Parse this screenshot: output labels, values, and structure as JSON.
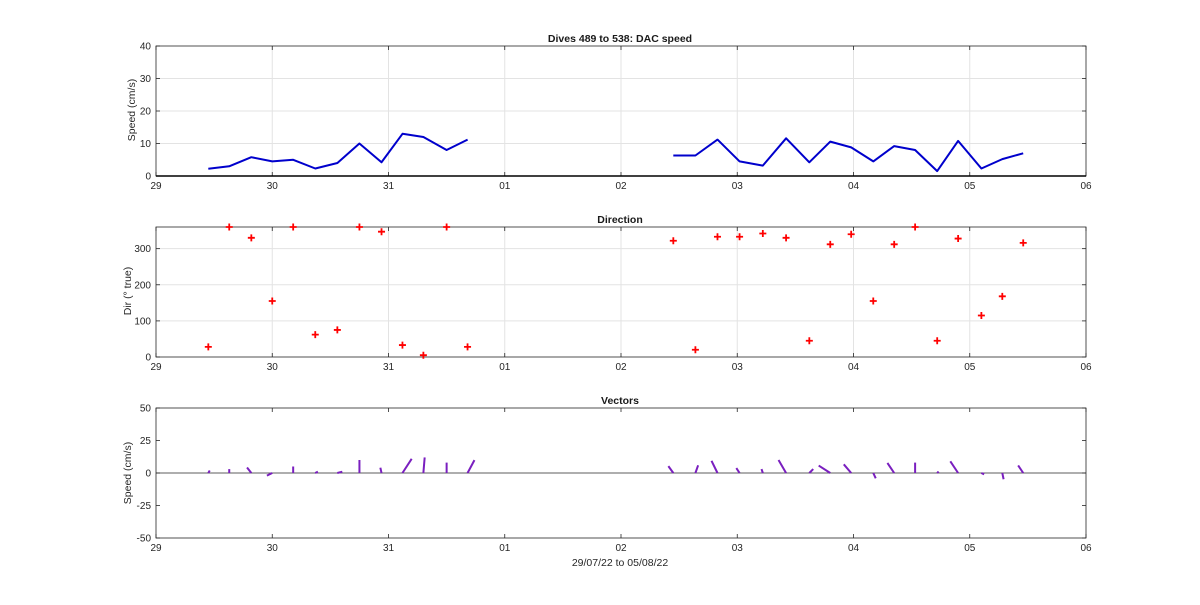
{
  "figure": {
    "xlabel": "29/07/22 to 05/08/22",
    "x_tick_labels": [
      "29",
      "30",
      "31",
      "01",
      "02",
      "03",
      "04",
      "05",
      "06"
    ]
  },
  "chart_data": [
    {
      "type": "line",
      "title": "Dives 489 to 538: DAC speed",
      "ylabel": "Speed (cm/s)",
      "xlabel": "",
      "xlim": [
        0,
        8
      ],
      "ylim": [
        0,
        40
      ],
      "y_ticks": [
        0,
        10,
        20,
        30,
        40
      ],
      "grid": true,
      "color": "#0000cc",
      "series": [
        {
          "segments": [
            [
              [
                0.45,
                2.2
              ],
              [
                0.63,
                3.0
              ],
              [
                0.82,
                5.8
              ],
              [
                1.0,
                4.5
              ],
              [
                1.18,
                5.0
              ],
              [
                1.37,
                2.3
              ],
              [
                1.56,
                4.0
              ],
              [
                1.75,
                10.0
              ],
              [
                1.94,
                4.2
              ],
              [
                2.12,
                13.0
              ],
              [
                2.3,
                12.0
              ],
              [
                2.5,
                8.0
              ],
              [
                2.68,
                11.2
              ]
            ],
            [
              [
                4.45,
                6.3
              ],
              [
                4.64,
                6.3
              ],
              [
                4.83,
                11.2
              ],
              [
                5.02,
                4.5
              ],
              [
                5.22,
                3.2
              ],
              [
                5.42,
                11.6
              ],
              [
                5.62,
                4.2
              ],
              [
                5.8,
                10.6
              ],
              [
                5.98,
                8.8
              ],
              [
                6.17,
                4.5
              ],
              [
                6.35,
                9.2
              ],
              [
                6.53,
                8.0
              ],
              [
                6.72,
                1.5
              ],
              [
                6.9,
                10.8
              ],
              [
                7.1,
                2.3
              ],
              [
                7.28,
                5.2
              ],
              [
                7.46,
                7.0
              ]
            ]
          ]
        }
      ]
    },
    {
      "type": "scatter",
      "title": "Direction",
      "ylabel": "Dir (° true)",
      "xlabel": "",
      "xlim": [
        0,
        8
      ],
      "ylim": [
        0,
        360
      ],
      "y_ticks": [
        0,
        100,
        200,
        300
      ],
      "grid": true,
      "color": "#ff0000",
      "marker": "+",
      "points": [
        [
          0.45,
          28
        ],
        [
          0.63,
          360
        ],
        [
          0.82,
          330
        ],
        [
          1.0,
          155
        ],
        [
          1.18,
          360
        ],
        [
          1.37,
          62
        ],
        [
          1.56,
          75
        ],
        [
          1.75,
          360
        ],
        [
          1.94,
          347
        ],
        [
          2.12,
          33
        ],
        [
          2.3,
          5
        ],
        [
          2.5,
          360
        ],
        [
          2.68,
          28
        ],
        [
          4.45,
          322
        ],
        [
          4.64,
          20
        ],
        [
          4.83,
          333
        ],
        [
          5.02,
          333
        ],
        [
          5.22,
          342
        ],
        [
          5.42,
          330
        ],
        [
          5.62,
          45
        ],
        [
          5.8,
          312
        ],
        [
          5.98,
          340
        ],
        [
          6.17,
          155
        ],
        [
          6.35,
          312
        ],
        [
          6.53,
          360
        ],
        [
          6.72,
          45
        ],
        [
          6.9,
          328
        ],
        [
          7.1,
          115
        ],
        [
          7.28,
          168
        ],
        [
          7.46,
          316
        ]
      ]
    },
    {
      "type": "line",
      "title": "Vectors",
      "ylabel": "Speed (cm/s)",
      "xlabel": "29/07/22 to 05/08/22",
      "xlim": [
        0,
        8
      ],
      "ylim": [
        -50,
        50
      ],
      "y_ticks": [
        -50,
        -25,
        0,
        25,
        50
      ],
      "grid": false,
      "zero_line": true,
      "color": "#7a1fbf",
      "vectors": [
        [
          0.45,
          1.1,
          1.9
        ],
        [
          0.63,
          0.0,
          3.0
        ],
        [
          0.82,
          -3.3,
          4.2
        ],
        [
          1.0,
          -4.1,
          -2.0
        ],
        [
          1.18,
          0.0,
          5.0
        ],
        [
          1.37,
          2.0,
          1.0
        ],
        [
          1.56,
          3.8,
          1.0
        ],
        [
          1.75,
          0.0,
          10.0
        ],
        [
          1.94,
          -0.9,
          4.1
        ],
        [
          2.12,
          7.1,
          10.9
        ],
        [
          2.3,
          1.0,
          12.0
        ],
        [
          2.5,
          0.0,
          8.0
        ],
        [
          2.68,
          5.3,
          9.9
        ],
        [
          4.45,
          -3.8,
          5.3
        ],
        [
          4.64,
          2.1,
          5.9
        ],
        [
          4.83,
          -4.6,
          9.4
        ],
        [
          5.02,
          -2.5,
          3.8
        ],
        [
          5.22,
          -1.0,
          3.0
        ],
        [
          5.42,
          -5.8,
          10.0
        ],
        [
          5.62,
          3.0,
          3.0
        ],
        [
          5.8,
          -8.9,
          5.7
        ],
        [
          5.98,
          -5.7,
          6.7
        ],
        [
          6.17,
          1.9,
          -4.1
        ],
        [
          6.35,
          -5.2,
          7.7
        ],
        [
          6.53,
          0.0,
          8.0
        ],
        [
          6.72,
          1.1,
          1.1
        ],
        [
          6.9,
          -6.0,
          9.0
        ],
        [
          7.1,
          2.1,
          -1.0
        ],
        [
          7.28,
          1.0,
          -4.8
        ],
        [
          7.46,
          -3.9,
          5.8
        ]
      ]
    }
  ]
}
